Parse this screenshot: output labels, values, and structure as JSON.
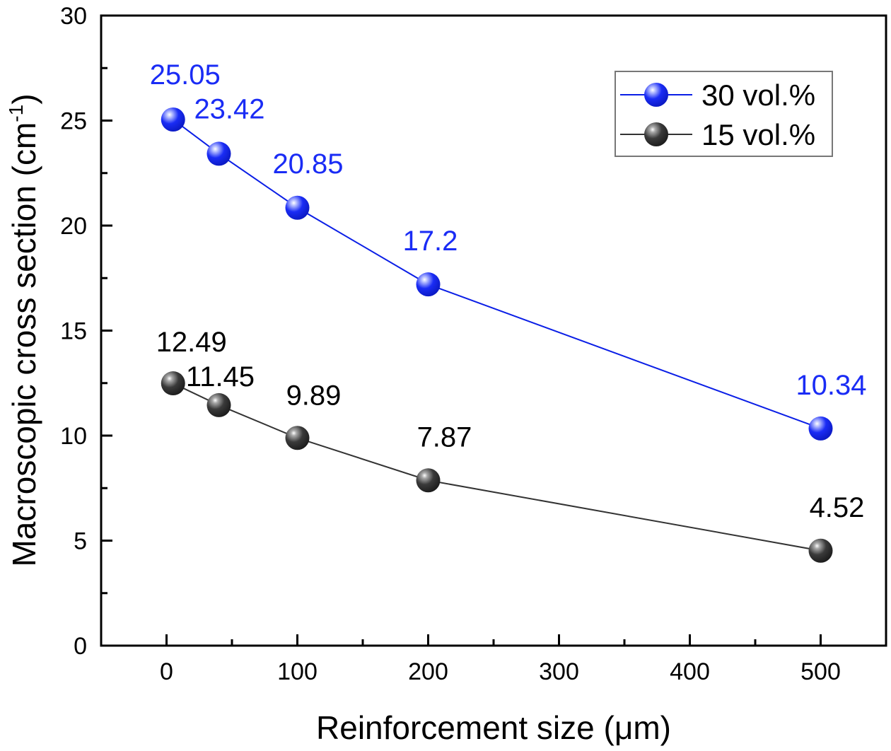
{
  "chart_data": {
    "type": "line",
    "title": "",
    "xlabel": "Reinforcement size (μm)",
    "ylabel_main": "Macroscopic cross section (cm",
    "ylabel_sup": "-1",
    "ylabel_close": ")",
    "xlim": [
      -50,
      550
    ],
    "ylim": [
      0,
      30
    ],
    "xticks": [
      0,
      100,
      200,
      300,
      400,
      500
    ],
    "yticks": [
      0,
      5,
      10,
      15,
      20,
      25,
      30
    ],
    "grid": false,
    "legend_position": "top-right",
    "series": [
      {
        "name": "30 vol.%",
        "color": "#0a1ee6",
        "marker_color": "#1a2cf5",
        "x": [
          5,
          40,
          100,
          200,
          500
        ],
        "y": [
          25.05,
          23.42,
          20.85,
          17.2,
          10.34
        ],
        "labels": [
          "25.05",
          "23.42",
          "20.85",
          "17.2",
          "10.34"
        ]
      },
      {
        "name": "15 vol.%",
        "color": "#333333",
        "marker_color": "#3a3a3a",
        "x": [
          5,
          40,
          100,
          200,
          500
        ],
        "y": [
          12.49,
          11.45,
          9.89,
          7.87,
          4.52
        ],
        "labels": [
          "12.49",
          "11.45",
          "9.89",
          "7.87",
          "4.52"
        ]
      }
    ]
  }
}
